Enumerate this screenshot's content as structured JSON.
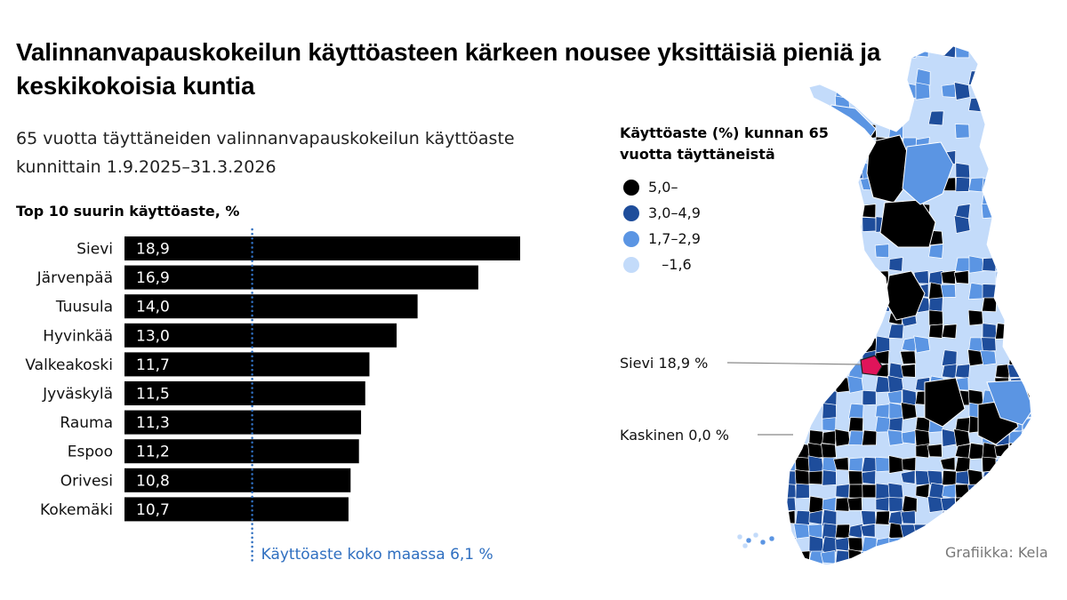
{
  "title": "Valinnanvapauskokeilun käyttöasteen kärkeen nousee yksittäisiä pieniä ja keskikokoisia kuntia",
  "subtitle": "65 vuotta täyttäneiden valinnanvapauskokeilun käyttöaste kunnittain 1.9.2025–31.3.2026",
  "chart_label": "Top 10 suurin käyttöaste, %",
  "reference_label": "Käyttöaste koko maassa 6,1 %",
  "credit": "Grafiikka: Kela",
  "colors": {
    "bar": "#000000",
    "bar_text": "#ffffff",
    "reference": "#2f6fc0",
    "highlight": "#e0145a"
  },
  "chart_data": [
    {
      "type": "bar",
      "orientation": "horizontal",
      "title": "Top 10 suurin käyttöaste, %",
      "categories": [
        "Sievi",
        "Järvenpää",
        "Tuusula",
        "Hyvinkää",
        "Valkeakoski",
        "Jyväskylä",
        "Rauma",
        "Espoo",
        "Orivesi",
        "Kokemäki"
      ],
      "values": [
        18.9,
        16.9,
        14.0,
        13.0,
        11.7,
        11.5,
        11.3,
        11.2,
        10.8,
        10.7
      ],
      "value_labels": [
        "18,9",
        "16,9",
        "14,0",
        "13,0",
        "11,7",
        "11,5",
        "11,3",
        "11,2",
        "10,8",
        "10,7"
      ],
      "xlim": [
        0,
        18.9
      ],
      "reference_line": {
        "value": 6.1,
        "label": "Käyttöaste koko maassa 6,1 %"
      },
      "grid": false
    },
    {
      "type": "map",
      "title": "Käyttöaste (%) kunnan 65 vuotta täyttäneistä",
      "legend": [
        {
          "label": "5,0–",
          "color": "#000000"
        },
        {
          "label": "3,0–4,9",
          "color": "#1e4d9b"
        },
        {
          "label": "1,7–2,9",
          "color": "#5b95e3"
        },
        {
          "label": "   –1,6",
          "color": "#c3dbfa"
        }
      ],
      "callouts": [
        {
          "label": "Sievi 18,9 %",
          "value": 18.9
        },
        {
          "label": "Kaskinen 0,0 %",
          "value": 0.0
        }
      ]
    }
  ]
}
